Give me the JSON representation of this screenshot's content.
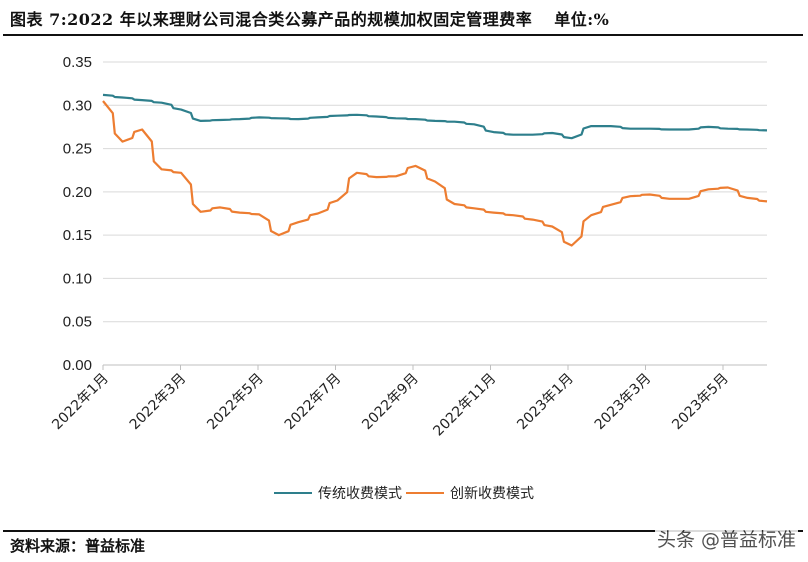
{
  "title": {
    "text": "图表 7:2022 年以来理财公司混合类公募产品的规模加权固定管理费率",
    "unit": "单位:%"
  },
  "source": "资料来源：普益标准",
  "watermark": "头条 @普益标准",
  "colors": {
    "traditional": "#2E7F8C",
    "innovative": "#ED7D31",
    "grid": "#D9D9D9"
  },
  "legend": [
    {
      "label": "传统收费模式",
      "color": "#2E7F8C"
    },
    {
      "label": "创新收费模式",
      "color": "#ED7D31"
    }
  ],
  "chart_data": {
    "type": "line",
    "title": "图表 7:2022 年以来理财公司混合类公募产品的规模加权固定管理费率",
    "unit": "单位:%",
    "xlabel": "",
    "ylabel": "",
    "ylim": [
      0,
      0.35
    ],
    "yticks": [
      "0.00",
      "0.05",
      "0.10",
      "0.15",
      "0.20",
      "0.25",
      "0.30",
      "0.35"
    ],
    "xticks": [
      "2022年1月",
      "2022年3月",
      "2022年5月",
      "2022年7月",
      "2022年9月",
      "2022年11月",
      "2023年1月",
      "2023年3月",
      "2023年5月"
    ],
    "grid": true,
    "legend_position": "bottom",
    "x": [
      "2022-01",
      "2022-01-15",
      "2022-02",
      "2022-02-15",
      "2022-03",
      "2022-03-15",
      "2022-04",
      "2022-04-15",
      "2022-05",
      "2022-05-15",
      "2022-06",
      "2022-06-15",
      "2022-07",
      "2022-07-15",
      "2022-08",
      "2022-08-15",
      "2022-09",
      "2022-09-15",
      "2022-10",
      "2022-10-15",
      "2022-11",
      "2022-11-15",
      "2022-12",
      "2022-12-15",
      "2023-01",
      "2023-01-15",
      "2023-02",
      "2023-02-15",
      "2023-03",
      "2023-03-15",
      "2023-04",
      "2023-04-15",
      "2023-05",
      "2023-05-15",
      "2023-06"
    ],
    "series": [
      {
        "name": "传统收费模式",
        "values": [
          0.312,
          0.309,
          0.306,
          0.303,
          0.295,
          0.282,
          0.283,
          0.284,
          0.286,
          0.285,
          0.284,
          0.286,
          0.288,
          0.289,
          0.287,
          0.285,
          0.284,
          0.282,
          0.281,
          0.278,
          0.269,
          0.266,
          0.266,
          0.268,
          0.262,
          0.276,
          0.276,
          0.273,
          0.273,
          0.272,
          0.272,
          0.275,
          0.273,
          0.272,
          0.271
        ]
      },
      {
        "name": "创新收费模式",
        "values": [
          0.305,
          0.258,
          0.272,
          0.226,
          0.222,
          0.177,
          0.182,
          0.176,
          0.174,
          0.15,
          0.165,
          0.175,
          0.19,
          0.222,
          0.217,
          0.218,
          0.23,
          0.212,
          0.186,
          0.181,
          0.176,
          0.173,
          0.168,
          0.16,
          0.138,
          0.173,
          0.185,
          0.195,
          0.197,
          0.192,
          0.192,
          0.203,
          0.205,
          0.193,
          0.189
        ]
      }
    ]
  }
}
